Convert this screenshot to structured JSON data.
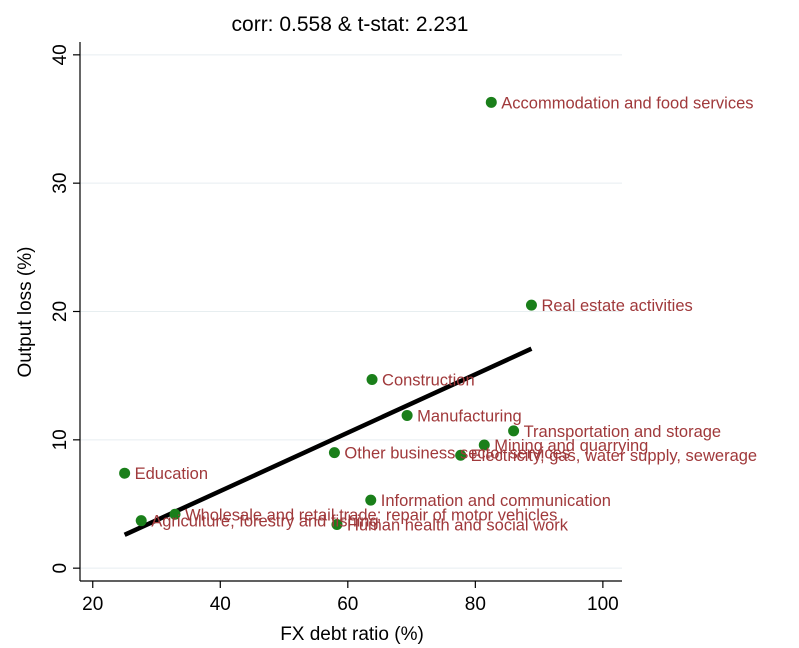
{
  "chart_data": {
    "type": "scatter",
    "title": "corr: 0.558 & t-stat: 2.231",
    "xlabel": "FX debt ratio (%)",
    "ylabel": "Output loss (%)",
    "xlim": [
      18,
      103
    ],
    "ylim": [
      -1,
      41
    ],
    "xticks": [
      20,
      40,
      60,
      80,
      100
    ],
    "yticks": [
      0,
      10,
      20,
      30,
      40
    ],
    "grid": "horizontal",
    "point_color": "#1a7f1a",
    "label_color": "#a0393b",
    "fit_color": "#000000",
    "points": [
      {
        "label": "Accommodation and food services",
        "x": 82.5,
        "y": 36.3
      },
      {
        "label": "Real estate activities",
        "x": 88.8,
        "y": 20.5
      },
      {
        "label": "Construction",
        "x": 63.8,
        "y": 14.7
      },
      {
        "label": "Manufacturing",
        "x": 69.3,
        "y": 11.9
      },
      {
        "label": "Transportation and storage",
        "x": 86.0,
        "y": 10.7
      },
      {
        "label": "Mining and quarrying",
        "x": 81.4,
        "y": 9.6
      },
      {
        "label": "Electricity, gas, water supply, sewerage",
        "x": 77.7,
        "y": 8.8
      },
      {
        "label": "Other business sector services",
        "x": 57.9,
        "y": 9.0
      },
      {
        "label": "Education",
        "x": 25.0,
        "y": 7.4
      },
      {
        "label": "Information and communication",
        "x": 63.6,
        "y": 5.3
      },
      {
        "label": "Wholesale and retail trade; repair of motor vehicles",
        "x": 32.9,
        "y": 4.2
      },
      {
        "label": "Agriculture, forestry and fishing",
        "x": 27.6,
        "y": 3.7
      },
      {
        "label": "Human health and social work",
        "x": 58.3,
        "y": 3.4
      }
    ],
    "fit_line": {
      "x": [
        25.0,
        88.8
      ],
      "y": [
        2.6,
        17.1
      ]
    }
  }
}
